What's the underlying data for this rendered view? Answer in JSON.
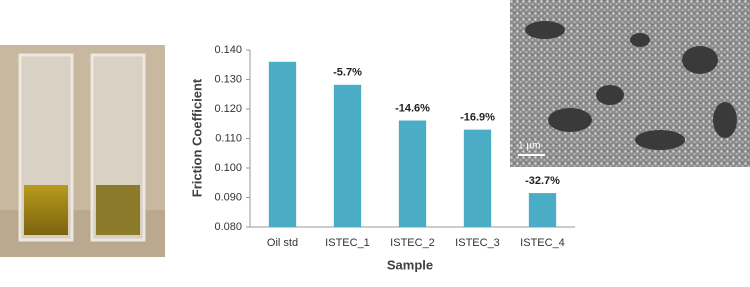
{
  "chart_data": {
    "type": "bar",
    "x_label": "Sample",
    "y_label": "Friction Coefficient",
    "categories": [
      "Oil std",
      "ISTEC_1",
      "ISTEC_2",
      "ISTEC_3",
      "ISTEC_4"
    ],
    "values": [
      0.136,
      0.1282,
      0.1161,
      0.113,
      0.0915
    ],
    "annotations": [
      null,
      "-5.7%",
      "-14.6%",
      "-16.9%",
      "-32.7%"
    ],
    "color": "#4bacc6",
    "ylim": [
      0.08,
      0.14
    ],
    "yticks": [
      {
        "value": 0.08,
        "label": "0.080"
      },
      {
        "value": 0.09,
        "label": "0.090"
      },
      {
        "value": 0.1,
        "label": "0.100"
      },
      {
        "value": 0.11,
        "label": "0.110"
      },
      {
        "value": 0.12,
        "label": "0.120"
      },
      {
        "value": 0.13,
        "label": "0.130"
      },
      {
        "value": 0.14,
        "label": "0.140"
      }
    ],
    "grid": false
  },
  "sem_image": {
    "scale_label": "1 µm"
  }
}
